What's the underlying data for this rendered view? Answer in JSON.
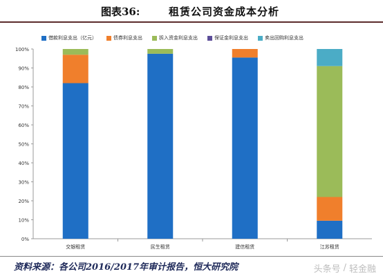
{
  "header": {
    "figure_label": "图表36:",
    "figure_title": "租赁公司资金成本分析"
  },
  "chart_data": {
    "type": "bar",
    "stacked": true,
    "categories": [
      "交银租赁",
      "民生租赁",
      "建信租赁",
      "江苏租赁"
    ],
    "series": [
      {
        "name": "借款利息支出（亿元）",
        "color": "#1f6fc5",
        "values": [
          82,
          97.5,
          95.5,
          9.5
        ]
      },
      {
        "name": "债券利息支出",
        "color": "#f07f2c",
        "values": [
          15,
          0,
          4.5,
          12.5
        ]
      },
      {
        "name": "拆入资金利息支出",
        "color": "#9bbb59",
        "values": [
          3,
          2.5,
          0,
          69
        ]
      },
      {
        "name": "保证金利息支出",
        "color": "#5c4d99",
        "values": [
          0,
          0,
          0,
          0
        ]
      },
      {
        "name": "卖出回购利息支出",
        "color": "#4bacc6",
        "values": [
          0,
          0,
          0,
          9
        ]
      }
    ],
    "ylim": [
      0,
      100
    ],
    "yticks": [
      "0%",
      "10%",
      "20%",
      "30%",
      "40%",
      "50%",
      "60%",
      "70%",
      "80%",
      "90%",
      "100%"
    ],
    "legend_position": "top",
    "grid": false
  },
  "footer": {
    "source": "资料来源：各公司2016/2017年审计报告，恒大研究院",
    "watermark_left": "头条号",
    "watermark_sep": "/",
    "watermark_right": "轻金融"
  }
}
